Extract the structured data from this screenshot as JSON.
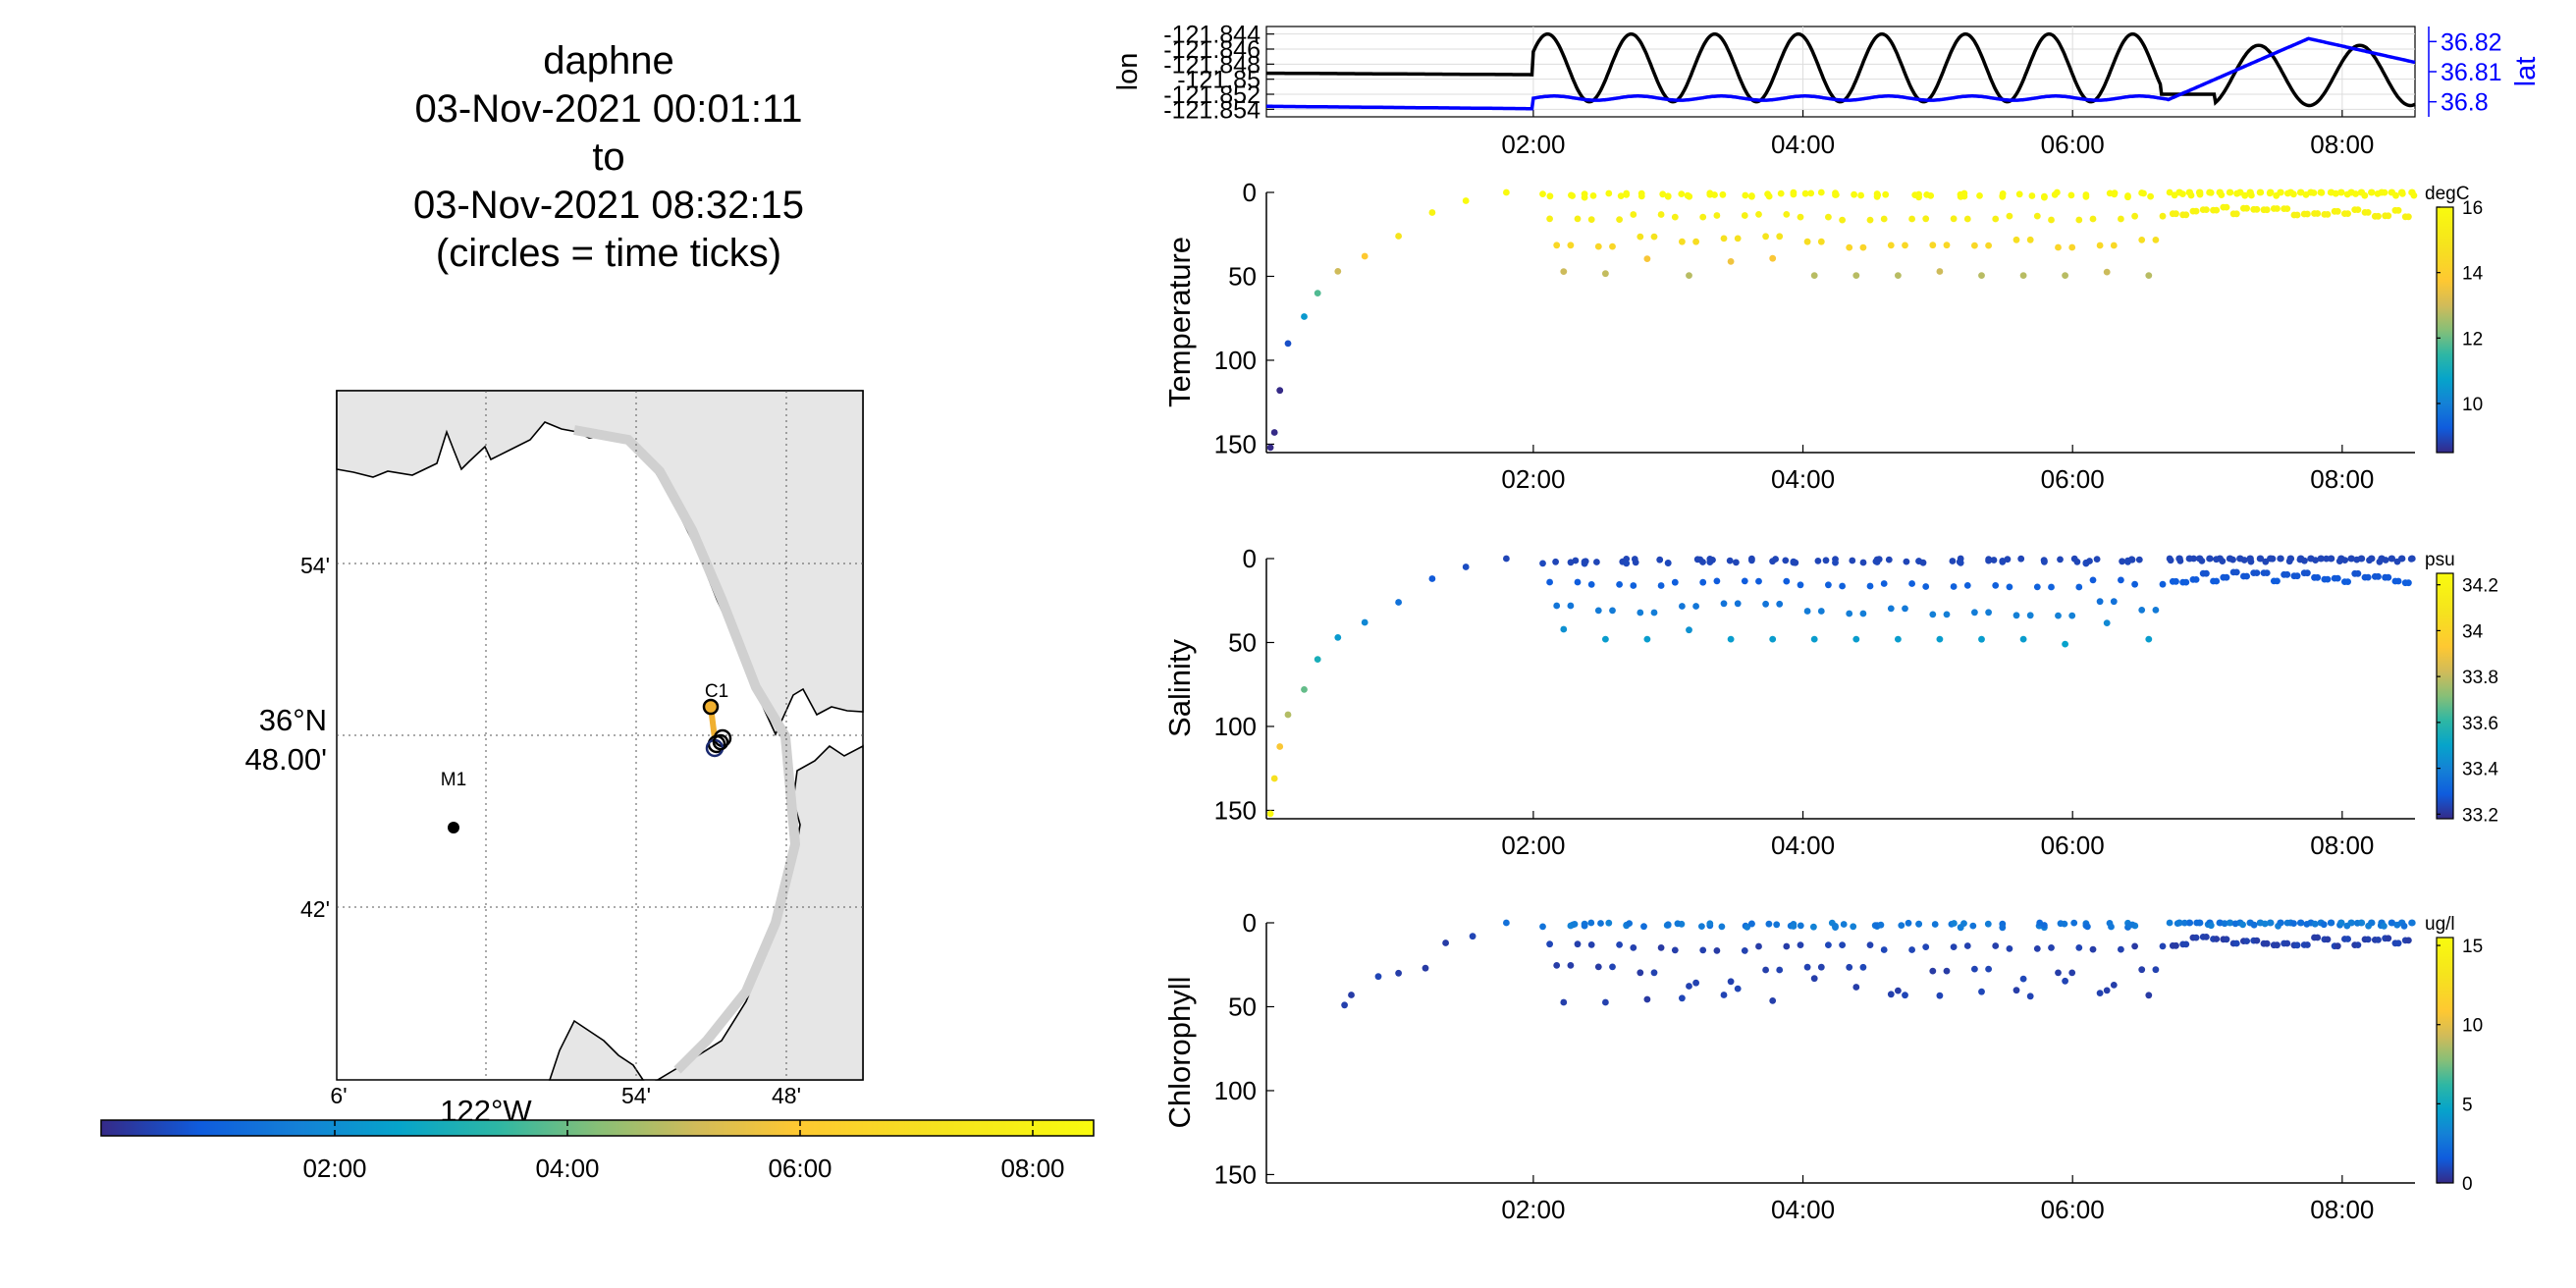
{
  "title": {
    "line1": "daphne",
    "line2": "03-Nov-2021 00:01:11",
    "line3": "to",
    "line4": "03-Nov-2021 08:32:15",
    "line5": "(circles = time ticks)"
  },
  "map": {
    "lat_labels": [
      "54'",
      "36°N",
      "48.00'",
      "42'"
    ],
    "lon_labels": [
      "6'",
      "54'",
      "48'"
    ],
    "lon_unit": "122°W",
    "stations": [
      {
        "name": "M1"
      },
      {
        "name": "C1"
      }
    ],
    "colorbar_ticks": [
      "02:00",
      "04:00",
      "06:00",
      "08:00"
    ]
  },
  "colors": {
    "lon_line": "#000000",
    "lat_line": "#0000ff",
    "land": "#e6e6e6",
    "path_orange": "#f0b030",
    "parula_low": "#352a87",
    "parula_high": "#f9fb0e"
  },
  "chart_data": [
    {
      "type": "line",
      "title": "",
      "xlabel": "",
      "x_ticks": [
        "02:00",
        "04:00",
        "06:00",
        "08:00"
      ],
      "x_range_hours": [
        0.02,
        8.54
      ],
      "series": [
        {
          "name": "lon",
          "axis": "left",
          "ylabel": "lon",
          "ylim": [
            -121.855,
            -121.843
          ],
          "y_ticks": [
            "-121.844",
            "-121.846",
            "-121.848",
            "-121.85",
            "-121.852",
            "-121.854"
          ],
          "description": "near -121.849 until 02:00, oscillating between -121.844 and -121.853 from 02:00 to 06:40, jump to -121.852 then oscillation after 07:00"
        },
        {
          "name": "lat",
          "axis": "right",
          "ylabel": "lat",
          "ylim": [
            36.795,
            36.825
          ],
          "y_ticks": [
            "36.8",
            "36.81",
            "36.82"
          ],
          "description": "near 36.798 until 02:00, small oscillation around 36.801 until 06:40, rising to 36.821 near 07:45 then falling"
        }
      ]
    },
    {
      "type": "scatter",
      "ylabel": "Temperature",
      "unit": "degC",
      "ylim": [
        155,
        0
      ],
      "y_ticks": [
        "0",
        "50",
        "100",
        "150"
      ],
      "x_ticks": [
        "02:00",
        "04:00",
        "06:00",
        "08:00"
      ],
      "colorbar": {
        "min": 8.5,
        "max": 16,
        "ticks": [
          "16",
          "14",
          "12",
          "10"
        ]
      },
      "descent": [
        [
          0.05,
          152
        ],
        [
          0.08,
          143
        ],
        [
          0.12,
          118
        ],
        [
          0.18,
          90
        ],
        [
          0.3,
          74
        ],
        [
          0.4,
          60
        ],
        [
          0.55,
          47
        ],
        [
          0.75,
          38
        ],
        [
          1.0,
          26
        ],
        [
          1.25,
          12
        ],
        [
          1.5,
          5
        ],
        [
          1.8,
          0
        ]
      ],
      "yo_profile_depth_range": [
        0,
        50
      ],
      "shallow_profile_depth_range": [
        0,
        20
      ]
    },
    {
      "type": "scatter",
      "ylabel": "Salinity",
      "unit": "psu",
      "ylim": [
        155,
        0
      ],
      "y_ticks": [
        "0",
        "50",
        "100",
        "150"
      ],
      "x_ticks": [
        "02:00",
        "04:00",
        "06:00",
        "08:00"
      ],
      "colorbar": {
        "min": 33.18,
        "max": 34.25,
        "ticks": [
          "34.2",
          "34",
          "33.8",
          "33.6",
          "33.4",
          "33.2"
        ]
      },
      "descent": [
        [
          0.05,
          152
        ],
        [
          0.08,
          131
        ],
        [
          0.12,
          112
        ],
        [
          0.18,
          93
        ],
        [
          0.3,
          78
        ],
        [
          0.4,
          60
        ],
        [
          0.55,
          47
        ],
        [
          0.75,
          38
        ],
        [
          1.0,
          26
        ],
        [
          1.25,
          12
        ],
        [
          1.5,
          5
        ],
        [
          1.8,
          0
        ]
      ],
      "yo_profile_depth_range": [
        0,
        50
      ],
      "shallow_profile_depth_range": [
        0,
        20
      ]
    },
    {
      "type": "scatter",
      "ylabel": "Chlorophyll",
      "unit": "ug/l",
      "ylim": [
        155,
        0
      ],
      "y_ticks": [
        "0",
        "50",
        "100",
        "150"
      ],
      "x_ticks": [
        "02:00",
        "04:00",
        "06:00",
        "08:00"
      ],
      "colorbar": {
        "min": 0,
        "max": 15.5,
        "ticks": [
          "15",
          "10",
          "5",
          "0"
        ]
      },
      "descent": [
        [
          0.6,
          49
        ],
        [
          0.65,
          43
        ],
        [
          0.85,
          32
        ],
        [
          1.0,
          30
        ],
        [
          1.2,
          27
        ],
        [
          1.35,
          12
        ],
        [
          1.55,
          8
        ],
        [
          1.8,
          0
        ]
      ],
      "yo_profile_depth_range": [
        0,
        50
      ],
      "shallow_profile_depth_range": [
        0,
        20
      ]
    }
  ]
}
